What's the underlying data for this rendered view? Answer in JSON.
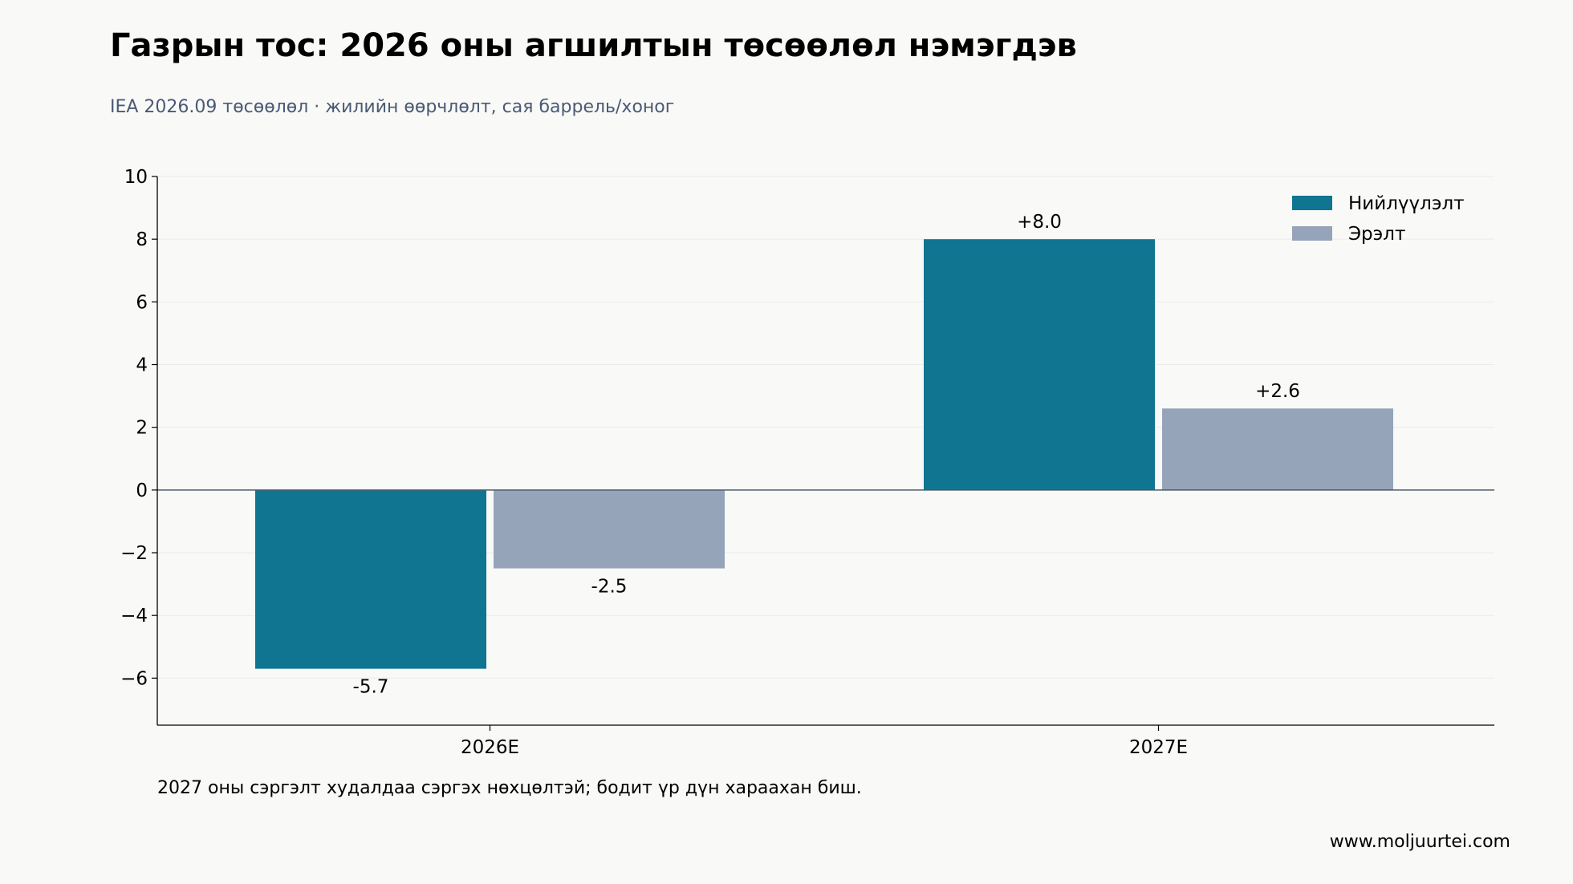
{
  "header": {
    "title": "Газрын тос: 2026 оны агшилтын төсөөлөл нэмэгдэв",
    "subtitle": "IEA 2026.09 төсөөлөл · жилийн өөрчлөлт, сая баррель/хоног"
  },
  "footer": {
    "note": "2027 оны сэргэлт худалдаа сэргэх нөхцөлтэй; бодит үр дүн хараахан биш.",
    "source": "www.moljuurtei.com"
  },
  "chart_data": {
    "type": "bar",
    "categories": [
      "2026E",
      "2027E"
    ],
    "series": [
      {
        "name": "Нийлүүлэлт",
        "values": [
          -5.7,
          8.0
        ],
        "labels": [
          "-5.7",
          "+8.0"
        ],
        "color": "#0f7591"
      },
      {
        "name": "Эрэлт",
        "values": [
          -2.5,
          2.6
        ],
        "labels": [
          "-2.5",
          "+2.6"
        ],
        "color": "#95a4b9"
      }
    ],
    "ylim": [
      -7.5,
      10
    ],
    "yticks": [
      10,
      8,
      6,
      4,
      2,
      0,
      -2,
      -4,
      -6
    ],
    "ytick_labels": [
      "10",
      "8",
      "6",
      "4",
      "2",
      "0",
      "−2",
      "−4",
      "−6"
    ],
    "xlabel": "",
    "ylabel": "",
    "grid": true,
    "legend_position": "top-right",
    "colors": {
      "grid": "#ececec",
      "axis": "#000000",
      "zero_line": "#4a5a6a"
    }
  }
}
